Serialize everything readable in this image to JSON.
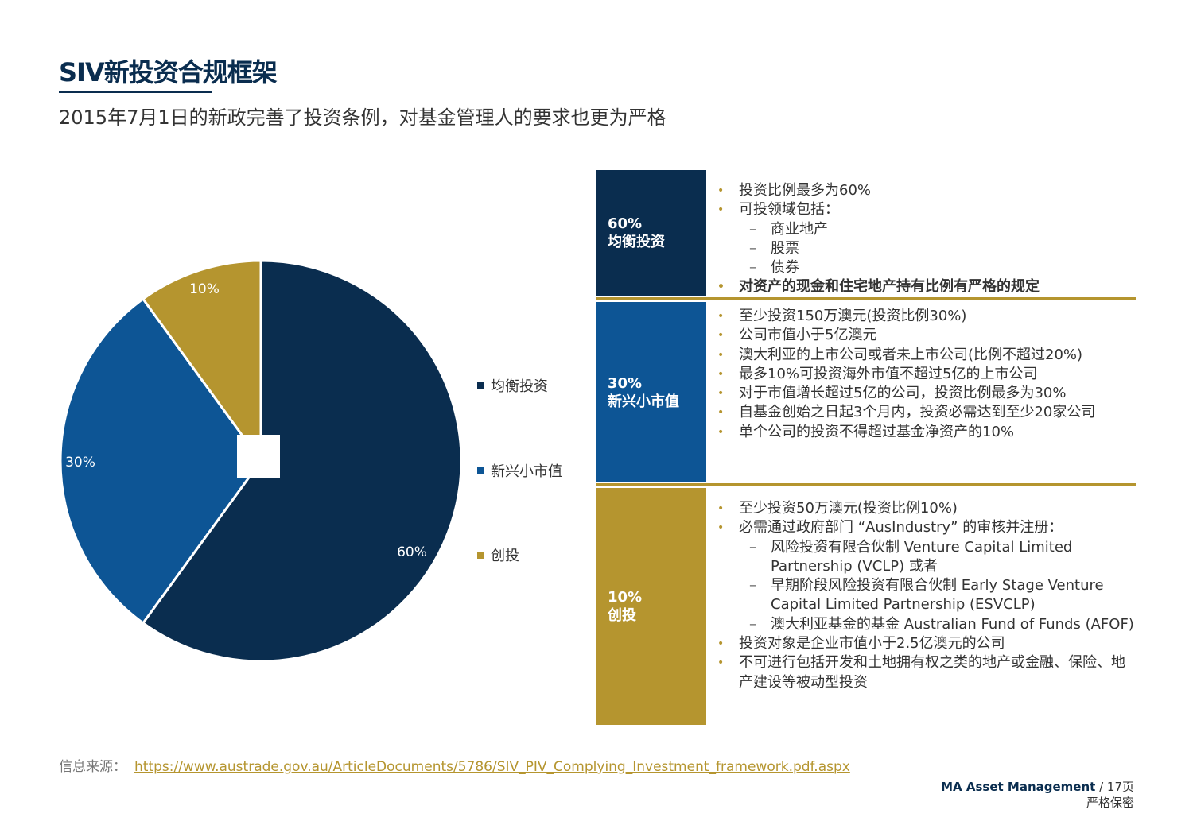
{
  "header": {
    "title": "SIV新投资合规框架",
    "subtitle": "2015年7月1日的新政完善了投资条例，对基金管理人的要求也更为严格"
  },
  "chart_data": {
    "type": "pie",
    "categories": [
      "均衡投资",
      "新兴小市值",
      "创投"
    ],
    "values": [
      60,
      30,
      10
    ],
    "data_labels": [
      "60%",
      "30%",
      "10%"
    ],
    "colors": [
      "#0a2d4f",
      "#0d5595",
      "#b5952f"
    ],
    "legend_position": "right"
  },
  "rows": [
    {
      "pct": "60%",
      "name": "均衡投资",
      "color": "#0a2d4f",
      "lines": [
        {
          "type": "bullet",
          "text": "投资比例最多为60%"
        },
        {
          "type": "bullet",
          "text": "可投领域包括："
        },
        {
          "type": "sub",
          "text": "商业地产"
        },
        {
          "type": "sub",
          "text": "股票"
        },
        {
          "type": "sub",
          "text": "债券"
        },
        {
          "type": "bullet-bold",
          "text": "对资产的现金和住宅地产持有比例有严格的规定"
        }
      ]
    },
    {
      "pct": "30%",
      "name": "新兴小市值",
      "color": "#0d5595",
      "lines": [
        {
          "type": "bullet",
          "text": "至少投资150万澳元(投资比例30%)"
        },
        {
          "type": "bullet",
          "text": "公司市值小于5亿澳元"
        },
        {
          "type": "bullet",
          "text": "澳大利亚的上市公司或者未上市公司(比例不超过20%)"
        },
        {
          "type": "bullet",
          "text": "最多10%可投资海外市值不超过5亿的上市公司"
        },
        {
          "type": "bullet",
          "text": "对于市值增长超过5亿的公司，投资比例最多为30%"
        },
        {
          "type": "bullet",
          "text": "自基金创始之日起3个月内，投资必需达到至少20家公司"
        },
        {
          "type": "bullet",
          "text": "单个公司的投资不得超过基金净资产的10%"
        }
      ]
    },
    {
      "pct": "10%",
      "name": "创投",
      "color": "#b5952f",
      "lines": [
        {
          "type": "bullet",
          "text": "至少投资50万澳元(投资比例10%)"
        },
        {
          "type": "bullet",
          "text": "必需通过政府部门 “AusIndustry” 的审核并注册："
        },
        {
          "type": "sub",
          "text": "风险投资有限合伙制 Venture Capital Limited Partnership (VCLP) 或者"
        },
        {
          "type": "sub",
          "text": "早期阶段风险投资有限合伙制 Early Stage Venture  Capital Limited Partnership (ESVCLP)"
        },
        {
          "type": "sub",
          "text": "澳大利亚基金的基金 Australian Fund of Funds (AFOF)"
        },
        {
          "type": "bullet",
          "text": "投资对象是企业市值小于2.5亿澳元的公司"
        },
        {
          "type": "bullet",
          "text": "不可进行包括开发和土地拥有权之类的地产或金融、保险、地产建设等被动型投资"
        }
      ]
    }
  ],
  "source": {
    "label": "信息来源：",
    "link": "https://www.austrade.gov.au/ArticleDocuments/5786/SIV_PIV_Complying_Investment_framework.pdf.aspx"
  },
  "footer": {
    "brand": "MA Asset Management",
    "page": " / 17页",
    "confidential": "严格保密"
  }
}
